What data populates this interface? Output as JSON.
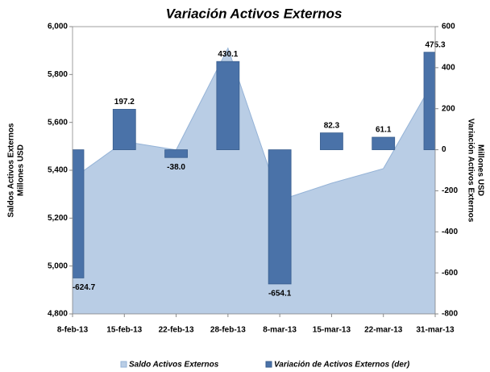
{
  "chart_data": {
    "type": "area_bar",
    "title": "Variación Activos Externos",
    "ylabel": [
      "Saldos Activos Externos",
      "Millones USD"
    ],
    "y2label": [
      "Variación Activos Externos",
      "Millones USD"
    ],
    "categories": [
      "8-feb-13",
      "15-feb-13",
      "22-feb-13",
      "28-feb-13",
      "8-mar-13",
      "15-mar-13",
      "22-mar-13",
      "31-mar-13"
    ],
    "series": [
      {
        "name": "Saldo Activos Externos",
        "type": "area",
        "color": "#b9cde5",
        "values": [
          5365,
          5520,
          5485,
          5910,
          5275,
          5346,
          5407,
          5785
        ]
      },
      {
        "name": "Variación de Activos Externos (der)",
        "type": "bar",
        "axis": "y2",
        "color": "#4a72a8",
        "values": [
          -624.7,
          197.2,
          -38.0,
          430.1,
          -654.1,
          82.3,
          61.1,
          475.3
        ],
        "value_labels": [
          "-624.7",
          "197.2",
          "-38.0",
          "430.1",
          "-654.1",
          "82.3",
          "61.1",
          "475.3"
        ]
      }
    ],
    "ylim": [
      4800,
      6000
    ],
    "yticks": [
      {
        "value": 4800,
        "label": "4,800"
      },
      {
        "value": 5000,
        "label": "5,000"
      },
      {
        "value": 5200,
        "label": "5,200"
      },
      {
        "value": 5400,
        "label": "5,400"
      },
      {
        "value": 5600,
        "label": "5,600"
      },
      {
        "value": 5800,
        "label": "5,800"
      },
      {
        "value": 6000,
        "label": "6,000"
      }
    ],
    "y2lim": [
      -800,
      600
    ],
    "y2ticks": [
      -800,
      -600,
      -400,
      -200,
      0,
      200,
      400,
      600
    ],
    "legend": "bottom"
  }
}
